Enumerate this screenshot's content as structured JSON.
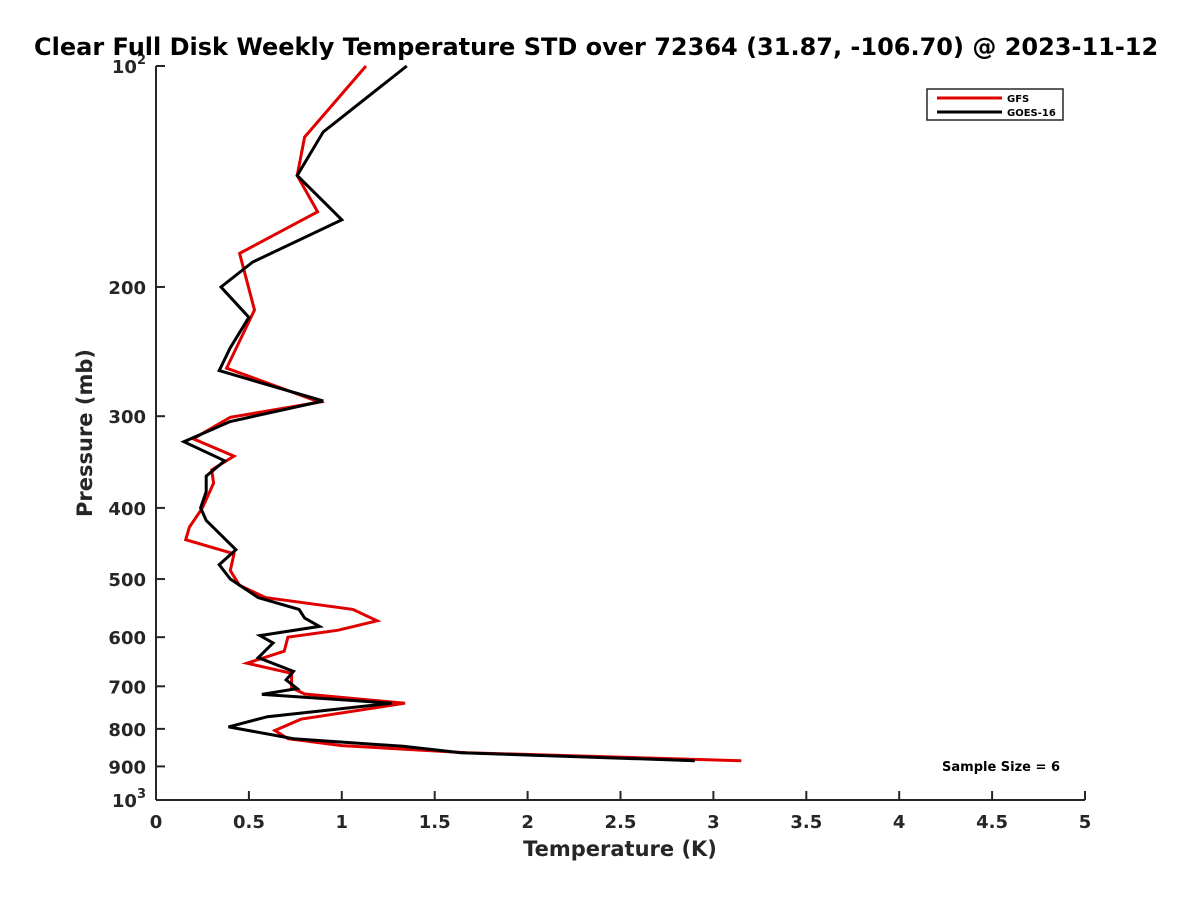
{
  "chart_data": {
    "type": "line",
    "title": "Clear Full Disk Weekly Temperature STD over 72364 (31.87, -106.70) @ 2023-11-12",
    "xlabel": "Temperature (K)",
    "ylabel": "Pressure (mb)",
    "xlim": [
      0,
      5
    ],
    "ylim": [
      100,
      1000
    ],
    "y_scale": "log",
    "y_reversed": true,
    "x_ticks": [
      "0",
      "0.5",
      "1",
      "1.5",
      "2",
      "2.5",
      "3",
      "3.5",
      "4",
      "4.5",
      "5"
    ],
    "y_ticks": [
      {
        "value": 100,
        "base": "10",
        "exp": "2"
      },
      {
        "value": 200,
        "label": "200"
      },
      {
        "value": 300,
        "label": "300"
      },
      {
        "value": 400,
        "label": "400"
      },
      {
        "value": 500,
        "label": "500"
      },
      {
        "value": 600,
        "label": "600"
      },
      {
        "value": 700,
        "label": "700"
      },
      {
        "value": 800,
        "label": "800"
      },
      {
        "value": 900,
        "label": "900"
      },
      {
        "value": 1000,
        "base": "10",
        "exp": "3"
      }
    ],
    "grid": false,
    "legend_position": "top-right",
    "annotation": "Sample Size = 6",
    "series": [
      {
        "name": "GFS",
        "color": "#e00000",
        "points": [
          [
            1.13,
            100
          ],
          [
            0.8,
            125
          ],
          [
            0.76,
            141
          ],
          [
            0.87,
            158
          ],
          [
            0.45,
            180
          ],
          [
            0.53,
            215
          ],
          [
            0.38,
            258
          ],
          [
            0.88,
            287
          ],
          [
            0.4,
            301
          ],
          [
            0.2,
            322
          ],
          [
            0.42,
            340
          ],
          [
            0.3,
            355
          ],
          [
            0.31,
            370
          ],
          [
            0.25,
            400
          ],
          [
            0.18,
            425
          ],
          [
            0.16,
            442
          ],
          [
            0.42,
            462
          ],
          [
            0.4,
            487
          ],
          [
            0.45,
            510
          ],
          [
            0.59,
            530
          ],
          [
            1.06,
            550
          ],
          [
            1.19,
            570
          ],
          [
            0.98,
            587
          ],
          [
            0.71,
            600
          ],
          [
            0.69,
            627
          ],
          [
            0.49,
            651
          ],
          [
            0.73,
            672
          ],
          [
            0.73,
            703
          ],
          [
            0.8,
            717
          ],
          [
            1.34,
            738
          ],
          [
            0.78,
            776
          ],
          [
            0.64,
            804
          ],
          [
            0.71,
            825
          ],
          [
            1.0,
            843
          ],
          [
            1.67,
            862
          ],
          [
            3.15,
            884
          ]
        ]
      },
      {
        "name": "GOES-16",
        "color": "#000000",
        "points": [
          [
            1.35,
            100
          ],
          [
            0.9,
            123
          ],
          [
            0.76,
            141
          ],
          [
            1.0,
            162
          ],
          [
            0.52,
            185
          ],
          [
            0.35,
            200
          ],
          [
            0.5,
            220
          ],
          [
            0.4,
            242
          ],
          [
            0.34,
            260
          ],
          [
            0.9,
            286
          ],
          [
            0.4,
            305
          ],
          [
            0.15,
            325
          ],
          [
            0.37,
            345
          ],
          [
            0.27,
            362
          ],
          [
            0.27,
            380
          ],
          [
            0.24,
            400
          ],
          [
            0.27,
            416
          ],
          [
            0.43,
            456
          ],
          [
            0.34,
            478
          ],
          [
            0.4,
            500
          ],
          [
            0.55,
            530
          ],
          [
            0.77,
            550
          ],
          [
            0.8,
            565
          ],
          [
            0.88,
            580
          ],
          [
            0.56,
            597
          ],
          [
            0.63,
            611
          ],
          [
            0.55,
            640
          ],
          [
            0.74,
            668
          ],
          [
            0.7,
            686
          ],
          [
            0.76,
            705
          ],
          [
            0.57,
            718
          ],
          [
            1.27,
            738
          ],
          [
            0.6,
            770
          ],
          [
            0.39,
            795
          ],
          [
            0.74,
            825
          ],
          [
            1.33,
            845
          ],
          [
            1.64,
            862
          ],
          [
            2.9,
            884
          ]
        ]
      }
    ]
  }
}
